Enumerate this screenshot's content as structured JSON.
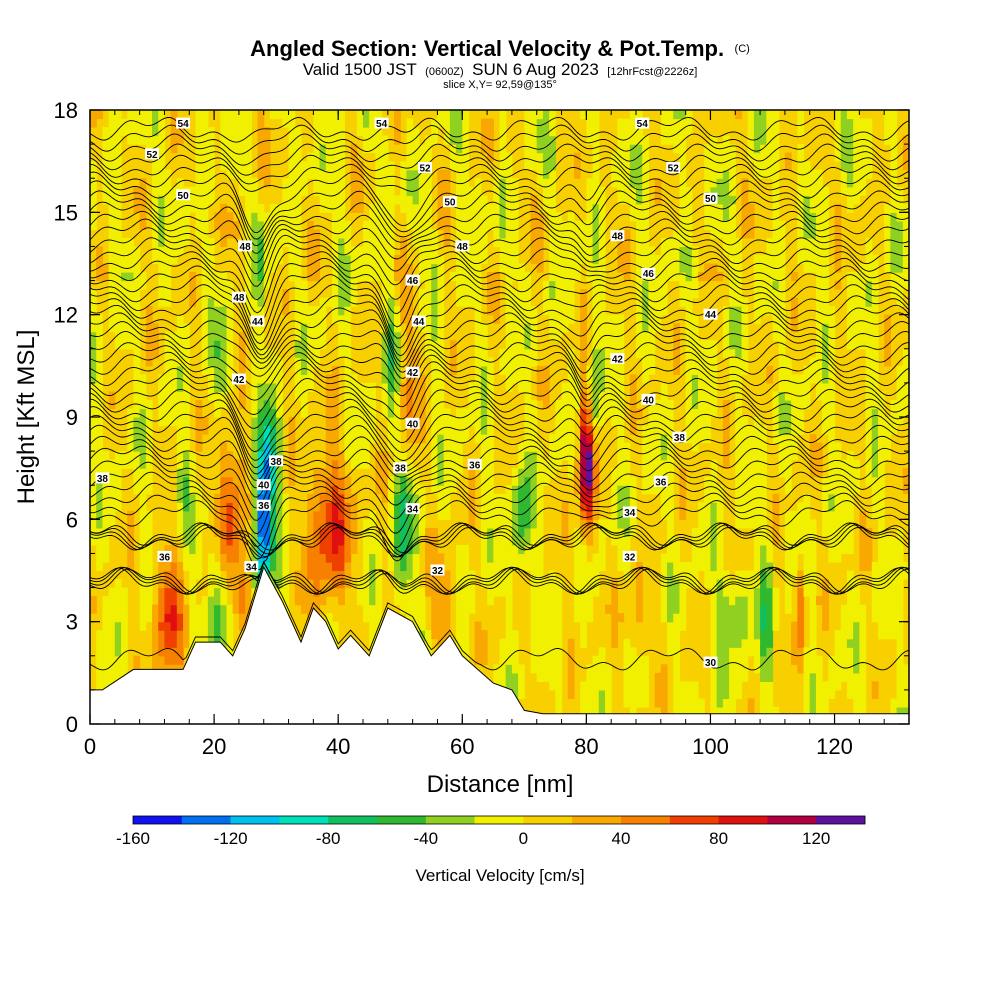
{
  "chart_data": {
    "type": "heatmap",
    "title": "Angled Section: Vertical Velocity & Pot.Temp.",
    "title_unit": "(C)",
    "subtitle_parts": [
      "Valid 1500 JST",
      "(0600Z)",
      "SUN 6 Aug 2023",
      "[12hrFcst@2226z]"
    ],
    "slice_label": "slice X,Y= 92,59@135°",
    "xlabel": "Distance [nm]",
    "ylabel": "Height [Kft MSL]",
    "xlim": [
      0,
      132
    ],
    "ylim": [
      0,
      18
    ],
    "x_ticks": [
      0,
      20,
      40,
      60,
      80,
      100,
      120
    ],
    "y_ticks": [
      0,
      3,
      6,
      9,
      12,
      15,
      18
    ],
    "background_level": 0,
    "colorbar": {
      "title": "Vertical Velocity [cm/s]",
      "tick_labels": [
        "-160",
        "-120",
        "-80",
        "-40",
        "0",
        "40",
        "80",
        "120"
      ],
      "tick_values": [
        -160,
        -120,
        -80,
        -40,
        0,
        40,
        80,
        120
      ],
      "min": -160,
      "max": 140,
      "step": 20,
      "colors": [
        "#1010f0",
        "#0070f0",
        "#00c0f0",
        "#00e0b8",
        "#10c060",
        "#30b830",
        "#90d020",
        "#f0f000",
        "#f8d000",
        "#f8a800",
        "#f88000",
        "#f04000",
        "#e01010",
        "#b00040",
        "#6010a0"
      ]
    },
    "terrain_profile": [
      [
        0,
        1
      ],
      [
        2,
        1
      ],
      [
        7,
        1.6
      ],
      [
        15,
        1.6
      ],
      [
        17,
        2.4
      ],
      [
        21,
        2.4
      ],
      [
        23,
        2.0
      ],
      [
        25,
        2.8
      ],
      [
        28,
        4.6
      ],
      [
        31,
        3.6
      ],
      [
        34,
        2.4
      ],
      [
        36,
        3.4
      ],
      [
        38,
        3.0
      ],
      [
        40,
        2.2
      ],
      [
        42,
        2.6
      ],
      [
        45,
        2.0
      ],
      [
        48,
        3.4
      ],
      [
        52,
        3.0
      ],
      [
        55,
        2.0
      ],
      [
        58,
        2.6
      ],
      [
        60,
        2.0
      ],
      [
        65,
        1.2
      ],
      [
        68,
        1.0
      ],
      [
        70,
        0.4
      ],
      [
        73,
        0.3
      ],
      [
        80,
        0.3
      ],
      [
        132,
        0.3
      ]
    ],
    "velocity_features": [
      {
        "x": 12.5,
        "z": 3.2,
        "wx": 2.2,
        "wz": 1.8,
        "value": 80
      },
      {
        "x": 22.5,
        "z": 6.2,
        "wx": 2.0,
        "wz": 2.4,
        "value": 80
      },
      {
        "x": 21.0,
        "z": 3.5,
        "wx": 1.8,
        "wz": 2.0,
        "value": -60
      },
      {
        "x": 28.0,
        "z": 6.0,
        "wx": 1.5,
        "wz": 2.2,
        "value": -150
      },
      {
        "x": 29.0,
        "z": 7.8,
        "wx": 1.4,
        "wz": 1.4,
        "value": -60
      },
      {
        "x": 24.5,
        "z": 3.5,
        "wx": 1.5,
        "wz": 1.2,
        "value": 60
      },
      {
        "x": 38.5,
        "z": 5.8,
        "wx": 3.5,
        "wz": 2.2,
        "value": 80
      },
      {
        "x": 50.5,
        "z": 5.8,
        "wx": 1.6,
        "wz": 2.0,
        "value": -60
      },
      {
        "x": 51.5,
        "z": 10.0,
        "wx": 1.6,
        "wz": 2.2,
        "value": 40
      },
      {
        "x": 48.5,
        "z": 11.0,
        "wx": 1.3,
        "wz": 1.4,
        "value": -40
      },
      {
        "x": 69.5,
        "z": 6.0,
        "wx": 1.4,
        "wz": 1.6,
        "value": -60
      },
      {
        "x": 80.0,
        "z": 7.8,
        "wx": 1.3,
        "wz": 2.0,
        "value": 140
      },
      {
        "x": 81.0,
        "z": 9.5,
        "wx": 1.1,
        "wz": 1.6,
        "value": -60
      },
      {
        "x": 109.0,
        "z": 3.5,
        "wx": 1.0,
        "wz": 2.5,
        "value": -40
      },
      {
        "x": 104.0,
        "z": 3.3,
        "wx": 3.0,
        "wz": 1.2,
        "value": -40
      },
      {
        "x": 114.5,
        "z": 3.5,
        "wx": 0.8,
        "wz": 1.4,
        "value": 60
      },
      {
        "x": 21.0,
        "z": 10.5,
        "wx": 1.3,
        "wz": 1.4,
        "value": -40
      },
      {
        "x": 15.0,
        "z": 7.0,
        "wx": 1.0,
        "wz": 1.0,
        "value": -40
      },
      {
        "x": 27.5,
        "z": 13.5,
        "wx": 0.8,
        "wz": 1.2,
        "value": -40
      },
      {
        "x": 57.0,
        "z": 3.5,
        "wx": 2.0,
        "wz": 1.5,
        "value": 40
      },
      {
        "x": 88.0,
        "z": 3.0,
        "wx": 2.5,
        "wz": 1.2,
        "value": 30
      }
    ],
    "theta_levels": [
      30,
      32,
      34,
      36,
      38,
      40,
      42,
      44,
      46,
      48,
      50,
      52,
      54
    ],
    "contour_labels": [
      {
        "text": "54",
        "x": 15,
        "z": 17.6
      },
      {
        "text": "54",
        "x": 47,
        "z": 17.6
      },
      {
        "text": "54",
        "x": 89,
        "z": 17.6
      },
      {
        "text": "52",
        "x": 10,
        "z": 16.7
      },
      {
        "text": "52",
        "x": 54,
        "z": 16.3
      },
      {
        "text": "52",
        "x": 94,
        "z": 16.3
      },
      {
        "text": "50",
        "x": 15,
        "z": 15.5
      },
      {
        "text": "50",
        "x": 58,
        "z": 15.3
      },
      {
        "text": "50",
        "x": 100,
        "z": 15.4
      },
      {
        "text": "48",
        "x": 25,
        "z": 14.0
      },
      {
        "text": "48",
        "x": 60,
        "z": 14.0
      },
      {
        "text": "48",
        "x": 85,
        "z": 14.3
      },
      {
        "text": "48",
        "x": 24,
        "z": 12.5
      },
      {
        "text": "46",
        "x": 52,
        "z": 13.0
      },
      {
        "text": "46",
        "x": 90,
        "z": 13.2
      },
      {
        "text": "44",
        "x": 27,
        "z": 11.8
      },
      {
        "text": "44",
        "x": 53,
        "z": 11.8
      },
      {
        "text": "44",
        "x": 100,
        "z": 12.0
      },
      {
        "text": "42",
        "x": 24,
        "z": 10.1
      },
      {
        "text": "42",
        "x": 52,
        "z": 10.3
      },
      {
        "text": "42",
        "x": 85,
        "z": 10.7
      },
      {
        "text": "40",
        "x": 52,
        "z": 8.8
      },
      {
        "text": "40",
        "x": 90,
        "z": 9.5
      },
      {
        "text": "40",
        "x": 28,
        "z": 7.0
      },
      {
        "text": "38",
        "x": 30,
        "z": 7.7
      },
      {
        "text": "38",
        "x": 50,
        "z": 7.5
      },
      {
        "text": "38",
        "x": 95,
        "z": 8.4
      },
      {
        "text": "38",
        "x": 2,
        "z": 7.2
      },
      {
        "text": "36",
        "x": 62,
        "z": 7.6
      },
      {
        "text": "36",
        "x": 92,
        "z": 7.1
      },
      {
        "text": "36",
        "x": 28,
        "z": 6.4
      },
      {
        "text": "36",
        "x": 12,
        "z": 4.9
      },
      {
        "text": "34",
        "x": 52,
        "z": 6.3
      },
      {
        "text": "34",
        "x": 87,
        "z": 6.2
      },
      {
        "text": "34",
        "x": 26,
        "z": 4.6
      },
      {
        "text": "32",
        "x": 56,
        "z": 4.5
      },
      {
        "text": "32",
        "x": 87,
        "z": 4.9
      },
      {
        "text": "30",
        "x": 100,
        "z": 1.8
      }
    ]
  }
}
